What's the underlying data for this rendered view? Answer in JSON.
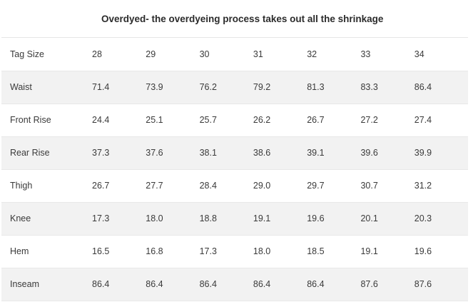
{
  "title": "Overdyed- the overdyeing process takes out all the shrinkage",
  "header": {
    "label": "Tag Size",
    "sizes": [
      "28",
      "29",
      "30",
      "31",
      "32",
      "33",
      "34"
    ]
  },
  "rows": [
    {
      "label": "Waist",
      "values": [
        "71.4",
        "73.9",
        "76.2",
        "79.2",
        "81.3",
        "83.3",
        "86.4"
      ]
    },
    {
      "label": "Front Rise",
      "values": [
        "24.4",
        "25.1",
        "25.7",
        "26.2",
        "26.7",
        "27.2",
        "27.4"
      ]
    },
    {
      "label": "Rear Rise",
      "values": [
        "37.3",
        "37.6",
        "38.1",
        "38.6",
        "39.1",
        "39.6",
        "39.9"
      ]
    },
    {
      "label": "Thigh",
      "values": [
        "26.7",
        "27.7",
        "28.4",
        "29.0",
        "29.7",
        "30.7",
        "31.2"
      ]
    },
    {
      "label": "Knee",
      "values": [
        "17.3",
        "18.0",
        "18.8",
        "19.1",
        "19.6",
        "20.1",
        "20.3"
      ]
    },
    {
      "label": "Hem",
      "values": [
        "16.5",
        "16.8",
        "17.3",
        "18.0",
        "18.5",
        "19.1",
        "19.6"
      ]
    },
    {
      "label": "Inseam",
      "values": [
        "86.4",
        "86.4",
        "86.4",
        "86.4",
        "86.4",
        "87.6",
        "87.6"
      ]
    }
  ]
}
